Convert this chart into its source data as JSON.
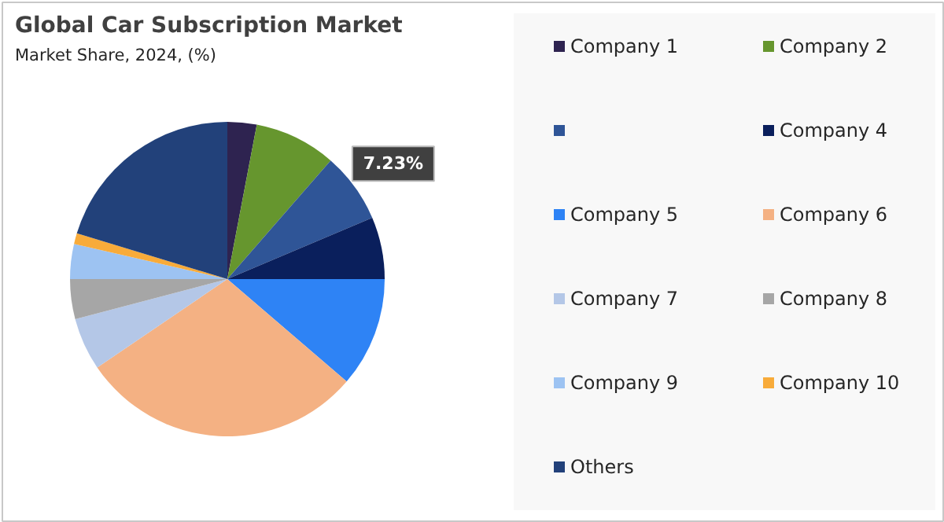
{
  "chart_data": {
    "type": "pie",
    "title": "Global Car Subscription Market",
    "subtitle": "Market Share, 2024, (%)",
    "categories": [
      "Company 1",
      "Company 2",
      null,
      "Company 4",
      "Company 5",
      "Company 6",
      "Company 7",
      "Company 8",
      "Company 9",
      "Company 10",
      "Others"
    ],
    "values": [
      3.0,
      8.4,
      7.23,
      6.37,
      11.3,
      29.2,
      5.4,
      4.1,
      3.6,
      1.1,
      20.3
    ],
    "colors": [
      "#2e2350",
      "#66962e",
      "#2f5597",
      "#0a1f5c",
      "#2e83f5",
      "#f4b183",
      "#b4c7e7",
      "#a6a6a6",
      "#9dc3f2",
      "#f8ab3a",
      "#22417a"
    ],
    "value_labels": [
      null,
      null,
      "7.23%",
      null,
      null,
      null,
      null,
      null,
      null,
      null,
      null
    ],
    "legend": "right"
  }
}
